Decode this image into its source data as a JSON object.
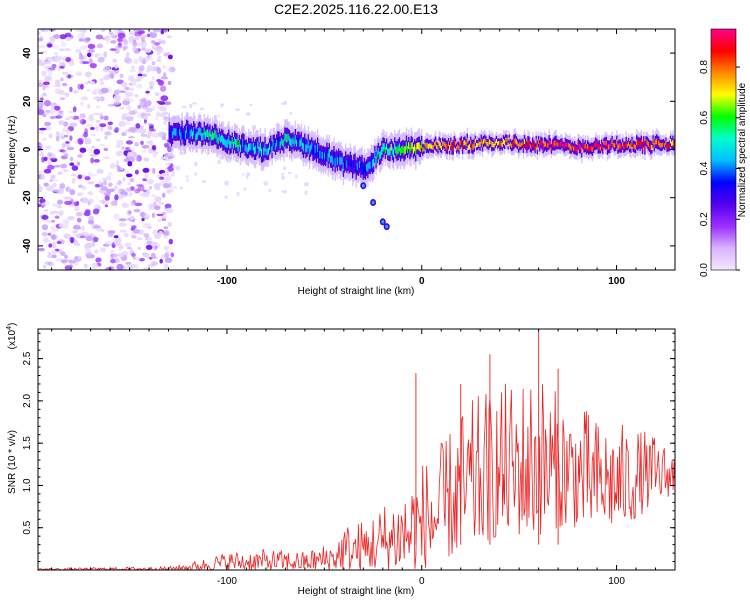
{
  "title": "C2E2.2025.116.22.00.E13",
  "chart_data": [
    {
      "type": "heatmap",
      "xlabel": "Height of straight line (km)",
      "ylabel": "Frequency (Hz)",
      "xlim": [
        -197,
        130
      ],
      "ylim": [
        -50,
        50
      ],
      "x_ticks": [
        -100,
        0,
        100
      ],
      "y_ticks": [
        40,
        20,
        0,
        -20,
        -40
      ],
      "colorbar": {
        "label": "Normalized spectral amplitude",
        "range": [
          0,
          0.95
        ],
        "ticks": [
          "0.0",
          "0.2",
          "0.4",
          "0.6",
          "0.8"
        ],
        "colormap": [
          "#f4e8ff",
          "#d9b3ff",
          "#9b30ff",
          "#5500ee",
          "#0000ff",
          "#00bfff",
          "#00ffcc",
          "#00ff00",
          "#ffff00",
          "#ff8800",
          "#ff0000",
          "#ff0088"
        ]
      },
      "trace": {
        "x": [
          -130,
          -120,
          -110,
          -100,
          -90,
          -80,
          -70,
          -60,
          -50,
          -40,
          -30,
          -20,
          -10,
          0,
          20,
          40,
          60,
          80,
          100,
          130
        ],
        "y": [
          6,
          7,
          6,
          3,
          1,
          0,
          4,
          2,
          -2,
          -6,
          -8,
          0,
          0,
          1,
          2,
          3,
          2,
          1,
          2,
          2
        ],
        "amplitude": [
          0.35,
          0.4,
          0.5,
          0.5,
          0.45,
          0.45,
          0.5,
          0.45,
          0.4,
          0.35,
          0.35,
          0.55,
          0.6,
          0.7,
          0.8,
          0.75,
          0.85,
          0.9,
          0.85,
          0.8
        ]
      },
      "noise_region": {
        "x_from": -197,
        "x_to": -128
      }
    },
    {
      "type": "line",
      "xlabel": "Height of straight line (km)",
      "ylabel": "SNR (10 * v/v)",
      "y_multiplier": "(x10",
      "y_multiplier_exp": "4",
      "y_multiplier_close": ")",
      "xlim": [
        -197,
        130
      ],
      "ylim": [
        0,
        2.85
      ],
      "x_ticks": [
        -100,
        0,
        100
      ],
      "y_ticks": [
        "0.5",
        "1.0",
        "1.5",
        "2.0",
        "2.5"
      ],
      "line_color": "#ee2222",
      "envelope": {
        "x": [
          -197,
          -130,
          -120,
          -100,
          -80,
          -60,
          -45,
          -40,
          -30,
          -20,
          -10,
          -5,
          0,
          10,
          20,
          30,
          40,
          50,
          60,
          70,
          80,
          90,
          100,
          110,
          120,
          130
        ],
        "low": [
          0,
          0,
          0,
          0,
          0,
          0,
          0,
          0,
          0,
          0,
          0,
          0,
          0,
          0.1,
          0.2,
          0.3,
          0.4,
          0.4,
          0.4,
          0.5,
          0.5,
          0.5,
          0.5,
          0.6,
          0.8,
          0.9
        ],
        "high": [
          0.02,
          0.04,
          0.08,
          0.22,
          0.25,
          0.22,
          0.35,
          0.55,
          0.6,
          0.8,
          1.0,
          1.15,
          1.3,
          1.5,
          1.9,
          2.1,
          2.2,
          2.3,
          2.4,
          2.1,
          2.0,
          1.8,
          1.75,
          1.7,
          1.6,
          1.4
        ]
      },
      "spikes": [
        {
          "x": -3,
          "y": 2.33
        },
        {
          "x": 20,
          "y": 2.2
        },
        {
          "x": 35,
          "y": 2.55
        },
        {
          "x": 60,
          "y": 2.85
        },
        {
          "x": 70,
          "y": 2.38
        }
      ]
    }
  ]
}
